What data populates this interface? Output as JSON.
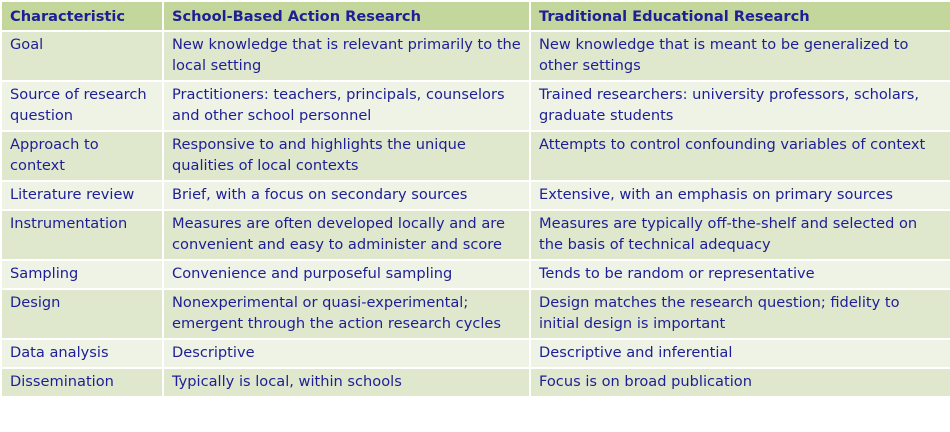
{
  "table": {
    "headers": [
      "Characteristic",
      "School-Based Action Research",
      "Traditional Educational Research"
    ],
    "rows": [
      [
        "Goal",
        "New knowledge that is relevant primarily to the local setting",
        "New knowledge that is meant to be generalized to other settings"
      ],
      [
        "Source of research question",
        "Practitioners: teachers, principals, counselors and other school personnel",
        "Trained researchers: university professors, scholars, graduate students"
      ],
      [
        "Approach to context",
        "Responsive to and highlights the unique qualities of local contexts",
        "Attempts to control confounding variables of context"
      ],
      [
        "Literature review",
        "Brief, with a focus on secondary sources",
        "Extensive, with an emphasis on primary sources"
      ],
      [
        "Instrumentation",
        "Measures are often developed locally and are convenient and easy to administer and score",
        "Measures are typically off-the-shelf and selected on the basis of technical adequacy"
      ],
      [
        "Sampling",
        "Convenience and purposeful sampling",
        "Tends to be random or representative"
      ],
      [
        "Design",
        "Nonexperimental or quasi-experimental; emergent through the action research cycles",
        "Design matches the research question; fidelity to initial design is important"
      ],
      [
        "Data analysis",
        "Descriptive",
        "Descriptive and inferential"
      ],
      [
        "Dissemination",
        "Typically is local, within schools",
        "Focus is on broad publication"
      ]
    ]
  },
  "colors": {
    "header_bg": "#c3d69b",
    "row_odd_bg": "#dfe8cd",
    "row_even_bg": "#eef3e6",
    "text": "#1e1e96"
  }
}
